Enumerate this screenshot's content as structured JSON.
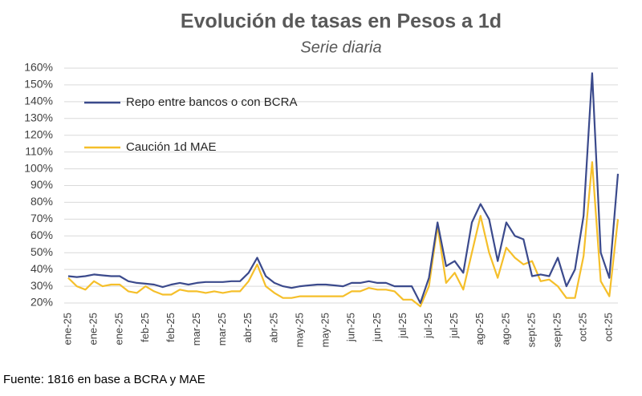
{
  "chart_data": {
    "type": "line",
    "title": "Evolución de tasas en Pesos a 1d",
    "subtitle": "Serie diaria",
    "source": "Fuente: 1816 en base a BCRA y MAE",
    "categories": [
      "ene-25",
      null,
      null,
      "ene-25",
      null,
      null,
      "ene-25",
      null,
      null,
      "feb-25",
      null,
      null,
      "feb-25",
      null,
      null,
      "mar-25",
      null,
      null,
      "mar-25",
      null,
      null,
      "abr-25",
      null,
      null,
      "abr-25",
      null,
      null,
      "may-25",
      null,
      null,
      "may-25",
      null,
      null,
      "jun-25",
      null,
      null,
      "jun-25",
      null,
      null,
      "jul-25",
      null,
      null,
      "jul-25",
      null,
      null,
      "jul-25",
      null,
      null,
      "ago-25",
      null,
      null,
      "ago-25",
      null,
      null,
      "sept-25",
      null,
      null,
      "sept-25",
      null,
      null,
      "oct-25",
      null,
      null,
      "oct-25",
      null
    ],
    "series": [
      {
        "name": "Repo entre bancos o con BCRA",
        "color": "#3b4a8c",
        "values": [
          36,
          35.5,
          36,
          37,
          36.5,
          36,
          36,
          33,
          32,
          31.5,
          31,
          29.5,
          31,
          32,
          31,
          32,
          32.5,
          32.5,
          32.5,
          33,
          33,
          38,
          47,
          36,
          32,
          30,
          29,
          30,
          30.5,
          31,
          31,
          30.5,
          30,
          32,
          32,
          33,
          32,
          32,
          30,
          30,
          30,
          20,
          35,
          68,
          42,
          45,
          38,
          68,
          79,
          70,
          45,
          68,
          60,
          58,
          36,
          37,
          36,
          47,
          30,
          40,
          72,
          157,
          50,
          35,
          97
        ]
      },
      {
        "name": "Caución 1d MAE",
        "color": "#f5bf2a",
        "values": [
          35,
          30,
          28,
          33,
          30,
          31,
          31,
          27,
          26,
          30,
          27,
          25,
          25,
          28,
          27,
          27,
          26,
          27,
          26,
          27,
          27,
          33,
          43,
          30,
          26,
          23,
          23,
          24,
          24,
          24,
          24,
          24,
          24,
          27,
          27,
          29,
          28,
          28,
          27,
          22,
          22,
          18,
          30,
          66,
          32,
          38,
          28,
          50,
          72,
          50,
          35,
          53,
          47,
          43,
          45,
          33,
          34,
          30,
          23,
          23,
          48,
          104,
          33,
          24,
          70
        ]
      }
    ],
    "ylim": [
      20,
      160
    ],
    "yticks": [
      {
        "value": 20,
        "label": "20%"
      },
      {
        "value": 30,
        "label": "30%"
      },
      {
        "value": 40,
        "label": "40%"
      },
      {
        "value": 50,
        "label": "50%"
      },
      {
        "value": 60,
        "label": "60%"
      },
      {
        "value": 70,
        "label": "70%"
      },
      {
        "value": 80,
        "label": "80%"
      },
      {
        "value": 90,
        "label": "90%"
      },
      {
        "value": 100,
        "label": "100%"
      },
      {
        "value": 110,
        "label": "110%"
      },
      {
        "value": 120,
        "label": "120%"
      },
      {
        "value": 130,
        "label": "130%"
      },
      {
        "value": 140,
        "label": "140%"
      },
      {
        "value": 150,
        "label": "150%"
      },
      {
        "value": 160,
        "label": "160%"
      }
    ],
    "grid": true,
    "legend": "upper-left"
  }
}
